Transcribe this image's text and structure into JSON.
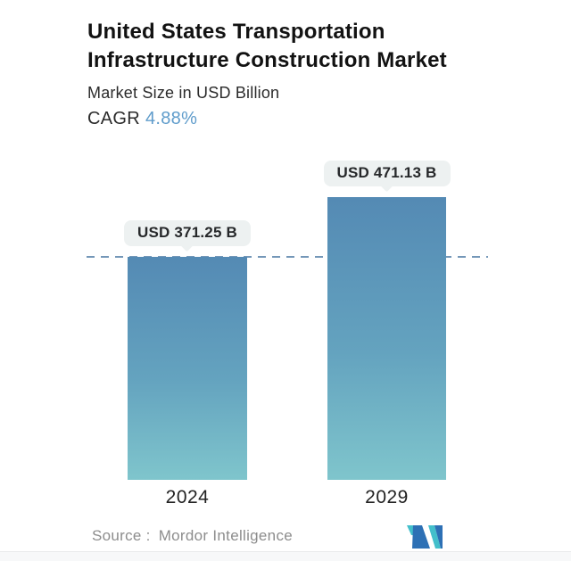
{
  "header": {
    "title": "United States Transportation Infrastructure Construction Market",
    "subtitle": "Market Size in USD Billion",
    "cagr_label": "CAGR",
    "cagr_value": "4.88%"
  },
  "chart_data": {
    "type": "bar",
    "title": "United States Transportation Infrastructure Construction Market",
    "subtitle": "Market Size in USD Billion",
    "unit": "USD Billion",
    "cagr_pct": 4.88,
    "categories": [
      "2024",
      "2029"
    ],
    "values": [
      371.25,
      471.13
    ],
    "value_labels": [
      "USD 371.25 B",
      "USD 471.13 B"
    ],
    "ylim": [
      0,
      500
    ],
    "grid": false,
    "legend": "none",
    "reference_line": {
      "style": "dashed",
      "value": 371.25,
      "color": "#7497b8"
    },
    "bar_gradient": {
      "top": "#548ab4",
      "bottom": "#7fc5cc"
    },
    "label_pill_bg": "#edf1f1"
  },
  "footer": {
    "source_label": "Source :",
    "source_value": "Mordor Intelligence"
  },
  "colors": {
    "accent_blue_text": "#5f9ccb",
    "title_text": "#121212",
    "source_text": "#8d8d8d",
    "logo_dark_blue": "#2d70b5",
    "logo_teal": "#43bfcb"
  }
}
